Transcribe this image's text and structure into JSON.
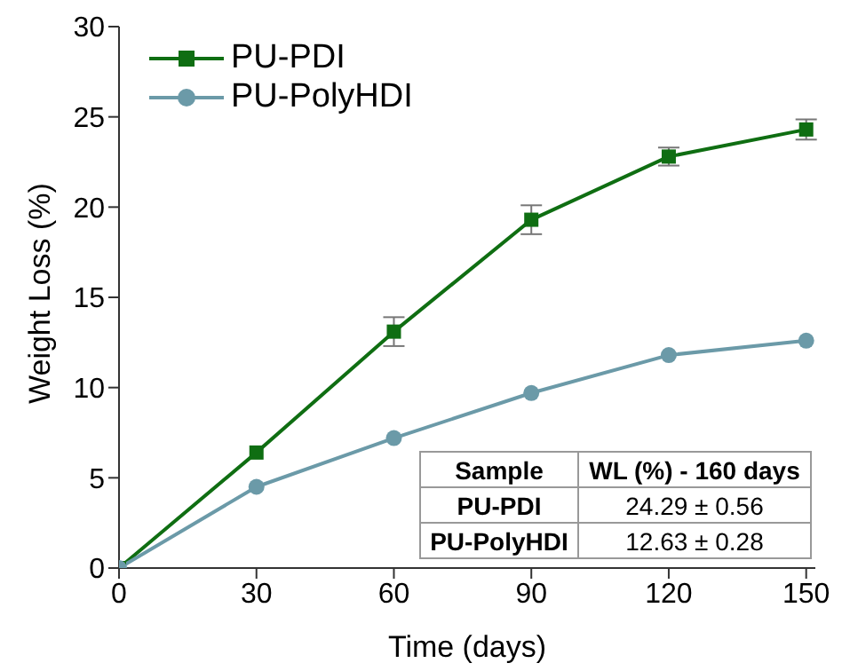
{
  "chart_data": {
    "type": "line",
    "xlabel": "Time (days)",
    "ylabel": "Weight Loss (%)",
    "x": [
      0,
      30,
      60,
      90,
      120,
      150
    ],
    "xlim": [
      0,
      152
    ],
    "xticks": [
      0,
      30,
      60,
      90,
      120,
      150
    ],
    "ylim": [
      0,
      30
    ],
    "yticks": [
      0,
      5,
      10,
      15,
      20,
      25,
      30
    ],
    "legend": "top left",
    "grid": false,
    "series": [
      {
        "name": "PU-PDI",
        "color": "#0f6e12",
        "marker": "square",
        "values": [
          0,
          6.4,
          13.1,
          19.3,
          22.8,
          24.3
        ],
        "errors": [
          null,
          null,
          0.8,
          0.8,
          0.5,
          0.56
        ]
      },
      {
        "name": "PU-PolyHDI",
        "color": "#6b9aa8",
        "marker": "circle",
        "values": [
          0,
          4.5,
          7.2,
          9.7,
          11.8,
          12.6
        ]
      }
    ],
    "annotations": [
      "Sample",
      "WL (%) - 160 days",
      "PU-PDI",
      "24.29 ± 0.56",
      "PU-PolyHDI",
      "12.63 ± 0.28"
    ]
  }
}
